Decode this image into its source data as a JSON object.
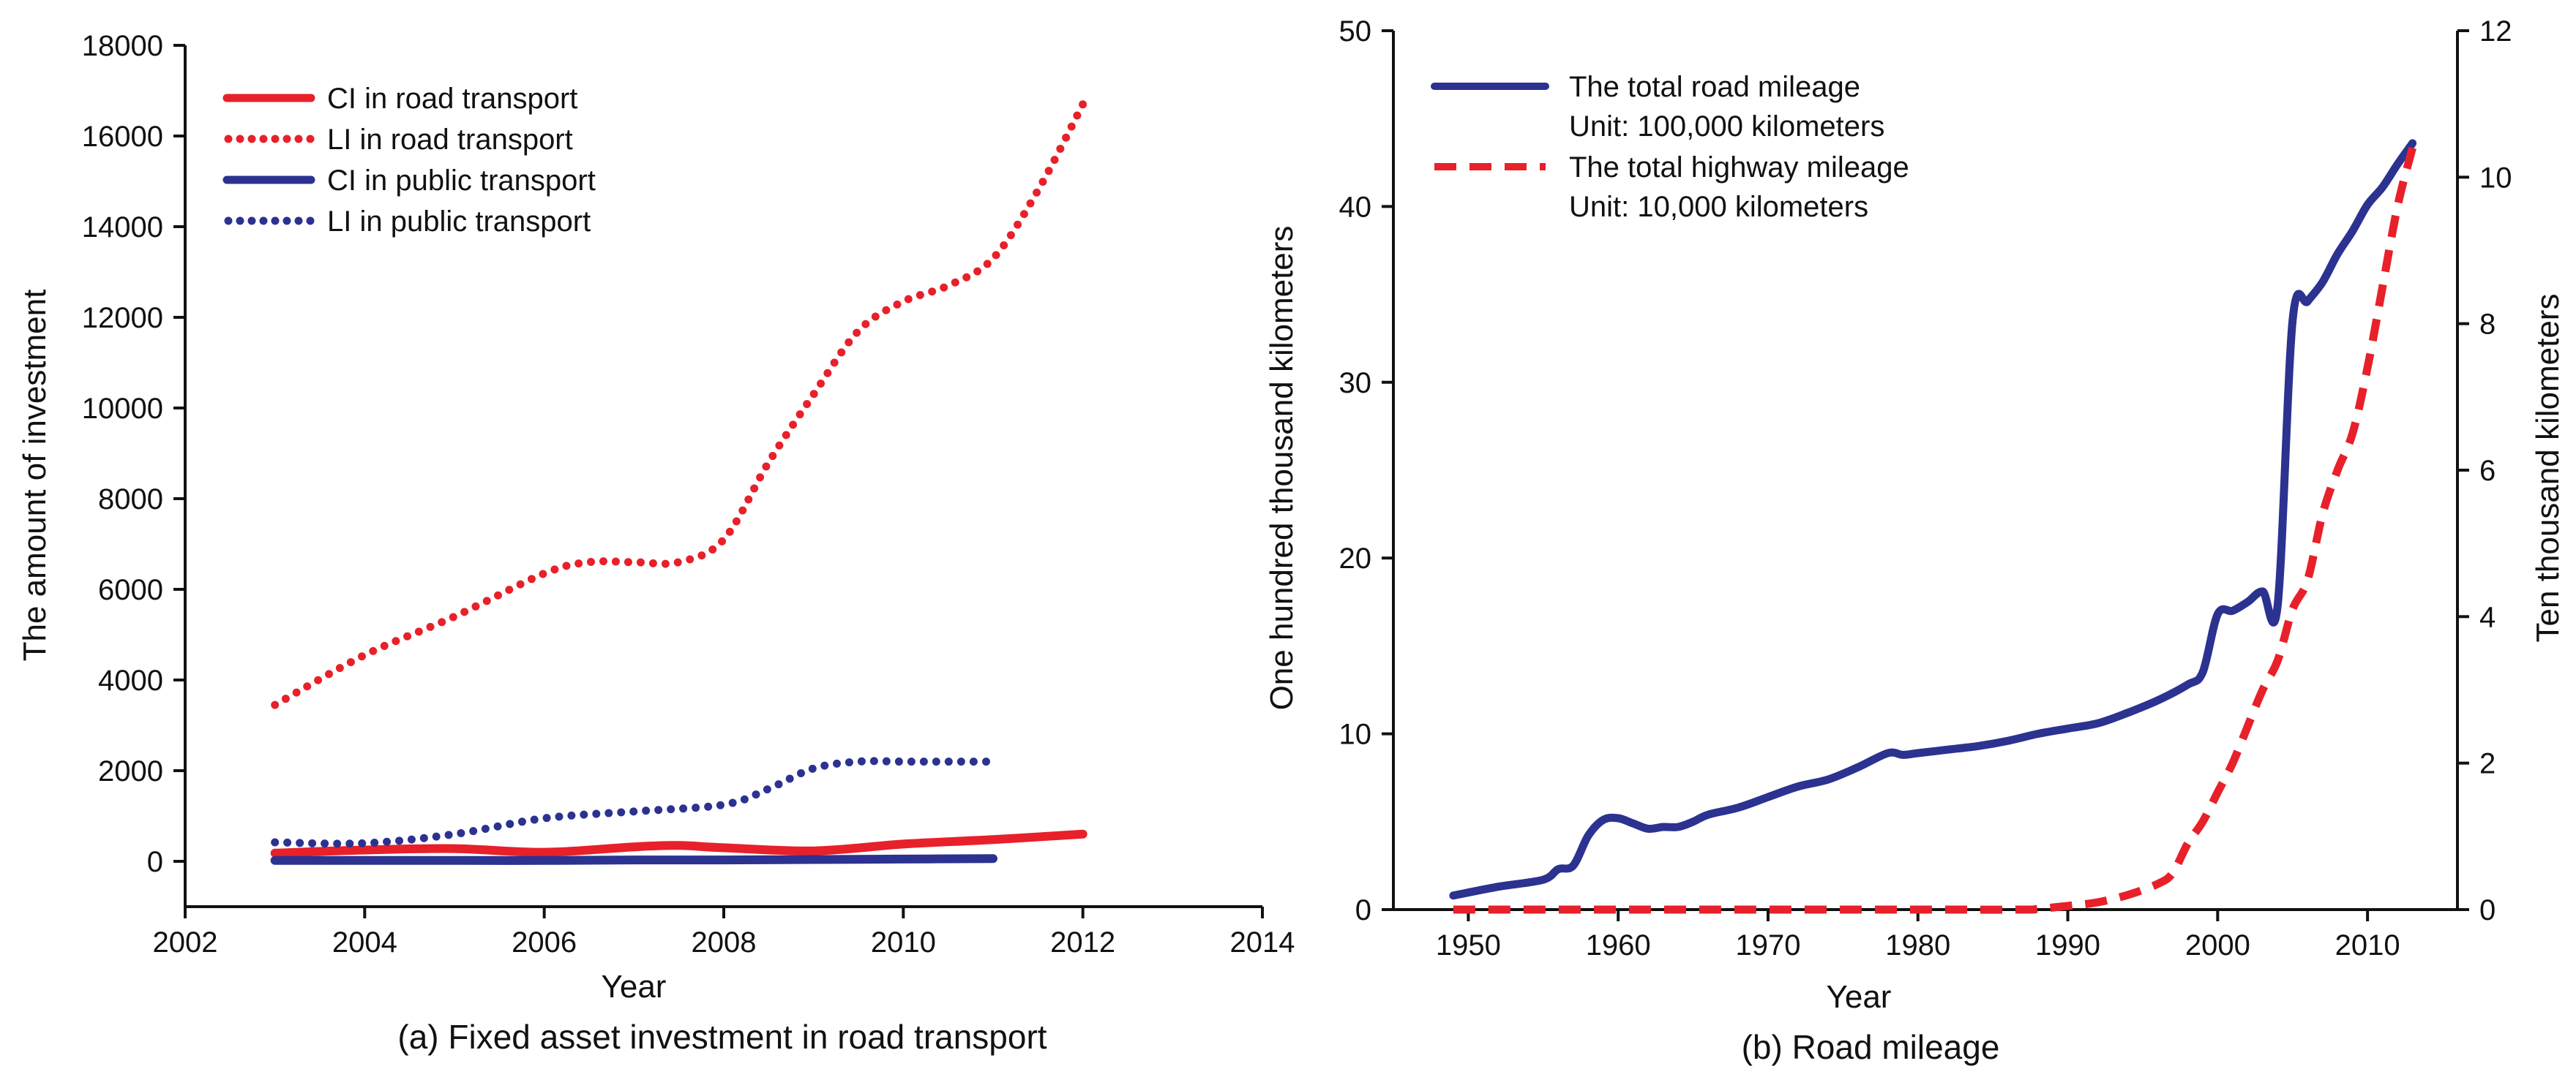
{
  "chart_data": [
    {
      "type": "line",
      "caption": "(a) Fixed asset investment in road transport",
      "xlabel": "Year",
      "ylabel": "The amount of investment",
      "xlim": [
        2002,
        2014
      ],
      "ylim": [
        -1000,
        18000
      ],
      "xticks": [
        2002,
        2004,
        2006,
        2008,
        2010,
        2012,
        2014
      ],
      "yticks": [
        0,
        2000,
        4000,
        6000,
        8000,
        10000,
        12000,
        14000,
        16000,
        18000
      ],
      "grid": false,
      "legend_position": "top-left",
      "series": [
        {
          "name": "CI  in road transport",
          "color": "#e8202a",
          "style": "solid",
          "x": [
            2003,
            2004,
            2005,
            2006,
            2007,
            2007.5,
            2008,
            2009,
            2010,
            2011,
            2012
          ],
          "y": [
            180,
            250,
            280,
            200,
            320,
            350,
            300,
            230,
            380,
            480,
            600
          ]
        },
        {
          "name": "LI  in road transport",
          "color": "#e8202a",
          "style": "dotted",
          "x": [
            2003,
            2004,
            2005,
            2006,
            2006.5,
            2007,
            2007.5,
            2008,
            2008.5,
            2009,
            2009.5,
            2010,
            2010.5,
            2011,
            2011.5,
            2012
          ],
          "y": [
            3450,
            4550,
            5400,
            6350,
            6600,
            6600,
            6600,
            7100,
            8800,
            10300,
            11700,
            12350,
            12700,
            13300,
            14800,
            16700
          ]
        },
        {
          "name": "CI  in public transport",
          "color": "#2b3290",
          "style": "solid",
          "x": [
            2003,
            2004,
            2005,
            2006,
            2007,
            2008,
            2009,
            2010,
            2011
          ],
          "y": [
            20,
            20,
            20,
            20,
            30,
            30,
            40,
            50,
            60
          ]
        },
        {
          "name": "LI  in public transport",
          "color": "#2b3290",
          "style": "dotted",
          "x": [
            2003,
            2004,
            2005,
            2006,
            2007,
            2008,
            2008.5,
            2009,
            2009.5,
            2010,
            2010.5,
            2011
          ],
          "y": [
            420,
            400,
            600,
            950,
            1100,
            1250,
            1600,
            2050,
            2200,
            2200,
            2200,
            2200
          ]
        }
      ]
    },
    {
      "type": "line",
      "caption": "(b) Road mileage",
      "xlabel": "Year",
      "ylabel": "One hundred thousand kilometers",
      "ylabel_right": "Ten thousand kilometers",
      "xlim": [
        1945,
        2016
      ],
      "ylim": [
        0,
        50
      ],
      "ylim_right": [
        0,
        12
      ],
      "xticks": [
        1950,
        1960,
        1970,
        1980,
        1990,
        2000,
        2010
      ],
      "yticks": [
        0,
        10,
        20,
        30,
        40,
        50
      ],
      "yticks_right": [
        0,
        2,
        4,
        6,
        8,
        10,
        12
      ],
      "grid": false,
      "legend_position": "top-left",
      "series": [
        {
          "name": "The total road mileage",
          "unit_label": "Unit: 100,000 kilometers",
          "color": "#2b3290",
          "style": "solid",
          "axis": "left",
          "x": [
            1949,
            1952,
            1955,
            1956,
            1957,
            1958,
            1959,
            1960,
            1961,
            1962,
            1963,
            1964,
            1965,
            1966,
            1968,
            1970,
            1972,
            1974,
            1976,
            1978,
            1979,
            1980,
            1982,
            1984,
            1986,
            1988,
            1990,
            1992,
            1994,
            1996,
            1998,
            1999,
            2000,
            2001,
            2002,
            2003,
            2004,
            2005,
            2006,
            2007,
            2008,
            2009,
            2010,
            2011,
            2012,
            2013
          ],
          "y": [
            0.8,
            1.3,
            1.7,
            2.3,
            2.5,
            4.2,
            5.1,
            5.2,
            4.9,
            4.6,
            4.7,
            4.7,
            5.0,
            5.4,
            5.8,
            6.4,
            7.0,
            7.4,
            8.1,
            8.9,
            8.8,
            8.9,
            9.1,
            9.3,
            9.6,
            10.0,
            10.3,
            10.6,
            11.2,
            11.9,
            12.8,
            13.5,
            16.8,
            17.0,
            17.5,
            18.1,
            17.3,
            33.5,
            34.6,
            35.7,
            37.3,
            38.6,
            40.1,
            41.1,
            42.4,
            43.6
          ]
        },
        {
          "name": "The total highway mileage",
          "unit_label": "Unit: 10,000  kilometers",
          "color": "#e8202a",
          "style": "dashed",
          "axis": "right",
          "x": [
            1949,
            1960,
            1970,
            1980,
            1987,
            1988,
            1990,
            1992,
            1994,
            1996,
            1997,
            1998,
            1999,
            2000,
            2001,
            2002,
            2003,
            2004,
            2005,
            2006,
            2007,
            2008,
            2009,
            2010,
            2011,
            2012,
            2013
          ],
          "y": [
            0,
            0,
            0,
            0,
            0,
            0.01,
            0.05,
            0.1,
            0.2,
            0.35,
            0.5,
            0.9,
            1.2,
            1.6,
            2.0,
            2.5,
            3.0,
            3.4,
            4.1,
            4.5,
            5.4,
            6.0,
            6.5,
            7.4,
            8.5,
            9.6,
            10.4
          ]
        }
      ]
    }
  ]
}
